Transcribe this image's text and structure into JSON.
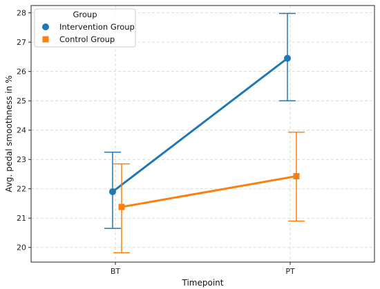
{
  "chart_data": {
    "type": "line",
    "categories": [
      "BT",
      "PT"
    ],
    "xlabel": "Timepoint",
    "ylabel": "Avg. pedal smoothness in %",
    "ylim": [
      19.5,
      28.25
    ],
    "yticks": [
      20,
      21,
      22,
      23,
      24,
      25,
      26,
      27,
      28
    ],
    "grid": true,
    "legend": {
      "title": "Group",
      "placement": "top-left"
    },
    "series": [
      {
        "name": "Intervention Group",
        "color": "#1f77b4",
        "marker": "circle",
        "values": [
          21.9,
          26.45
        ],
        "err_low": [
          20.65,
          25.0
        ],
        "err_high": [
          23.25,
          27.98
        ]
      },
      {
        "name": "Control Group",
        "color": "#ff7f0e",
        "marker": "square",
        "values": [
          21.38,
          22.43
        ],
        "err_low": [
          19.82,
          20.9
        ],
        "err_high": [
          22.85,
          23.93
        ]
      }
    ]
  }
}
